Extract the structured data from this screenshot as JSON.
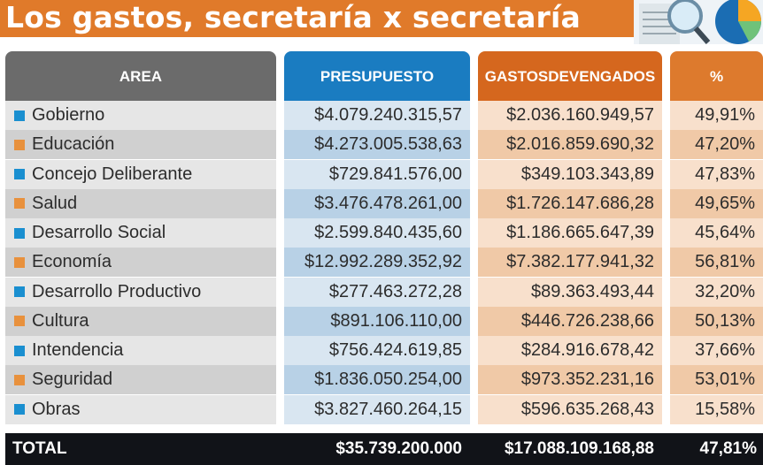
{
  "title": "Los gastos, secretaría x secretaría",
  "colors": {
    "title_bg": "#e07a2a",
    "area_header": "#6b6b6b",
    "presupuesto_header": "#1a7cc1",
    "gastos_header": "#d5671e",
    "pct_header": "#dd7a2d",
    "bullet_blue": "#1a8fd0",
    "bullet_orange": "#e8913d",
    "total_bg": "#111318"
  },
  "chart_data": {
    "type": "table",
    "columns": [
      "AREA",
      "PRESUPUESTO",
      "GASTOS DEVENGADOS",
      "%"
    ],
    "headers": {
      "area": "AREA",
      "presupuesto": "PRESUPUESTO",
      "gastos_line1": "GASTOS",
      "gastos_line2": "DEVENGADOS",
      "pct": "%"
    },
    "rows": [
      {
        "area": "Gobierno",
        "presupuesto": "$4.079.240.315,57",
        "gastos": "$2.036.160.949,57",
        "pct": "49,91%",
        "bullet": "blue"
      },
      {
        "area": "Educación",
        "presupuesto": "$4.273.005.538,63",
        "gastos": "$2.016.859.690,32",
        "pct": "47,20%",
        "bullet": "orange"
      },
      {
        "area": "Concejo Deliberante",
        "presupuesto": "$729.841.576,00",
        "gastos": "$349.103.343,89",
        "pct": "47,83%",
        "bullet": "blue"
      },
      {
        "area": "Salud",
        "presupuesto": "$3.476.478.261,00",
        "gastos": "$1.726.147.686,28",
        "pct": "49,65%",
        "bullet": "orange"
      },
      {
        "area": "Desarrollo Social",
        "presupuesto": "$2.599.840.435,60",
        "gastos": "$1.186.665.647,39",
        "pct": "45,64%",
        "bullet": "blue"
      },
      {
        "area": "Economía",
        "presupuesto": "$12.992.289.352,92",
        "gastos": "$7.382.177.941,32",
        "pct": "56,81%",
        "bullet": "orange"
      },
      {
        "area": "Desarrollo Productivo",
        "presupuesto": "$277.463.272,28",
        "gastos": "$89.363.493,44",
        "pct": "32,20%",
        "bullet": "blue"
      },
      {
        "area": "Cultura",
        "presupuesto": "$891.106.110,00",
        "gastos": "$446.726.238,66",
        "pct": "50,13%",
        "bullet": "orange"
      },
      {
        "area": "Intendencia",
        "presupuesto": "$756.424.619,85",
        "gastos": "$284.916.678,42",
        "pct": "37,66%",
        "bullet": "blue"
      },
      {
        "area": "Seguridad",
        "presupuesto": "$1.836.050.254,00",
        "gastos": "$973.352.231,16",
        "pct": "53,01%",
        "bullet": "orange"
      },
      {
        "area": "Obras",
        "presupuesto": "$3.827.460.264,15",
        "gastos": "$596.635.268,43",
        "pct": "15,58%",
        "bullet": "blue"
      }
    ],
    "total": {
      "label": "TOTAL",
      "presupuesto": "$35.739.200.000",
      "gastos": "$17.088.109.168,88",
      "pct": "47,81%"
    }
  }
}
